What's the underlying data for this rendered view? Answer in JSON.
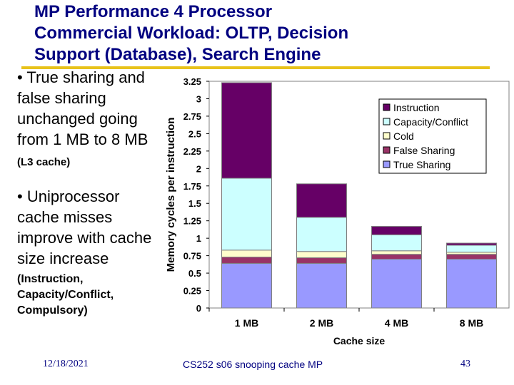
{
  "slide": {
    "title_lines": [
      "MP Performance 4 Processor",
      "Commercial Workload: OLTP, Decision",
      "Support (Database), Search Engine"
    ],
    "bullet1_main": "• True sharing and false sharing unchanged going from 1 MB to 8 MB",
    "bullet1_small": "(L3 cache)",
    "bullet2_main": "• Uniprocessor cache misses improve with cache size increase",
    "bullet2_note": "(Instruction, Capacity/Conflict, Compulsory)",
    "footer_date": "12/18/2021",
    "footer_center": "CS252 s06 snooping cache MP",
    "footer_page": "43"
  },
  "chart_data": {
    "type": "bar",
    "stacked": true,
    "categories": [
      "1 MB",
      "2 MB",
      "4 MB",
      "8 MB"
    ],
    "series": [
      {
        "name": "True Sharing",
        "color": "#9999ff",
        "values": [
          0.64,
          0.64,
          0.7,
          0.7
        ]
      },
      {
        "name": "False Sharing",
        "color": "#993366",
        "values": [
          0.09,
          0.08,
          0.07,
          0.07
        ]
      },
      {
        "name": "Cold",
        "color": "#ffffcc",
        "values": [
          0.1,
          0.09,
          0.05,
          0.03
        ]
      },
      {
        "name": "Capacity/Conflict",
        "color": "#ccffff",
        "values": [
          1.03,
          0.49,
          0.23,
          0.1
        ]
      },
      {
        "name": "Instruction",
        "color": "#660066",
        "values": [
          1.37,
          0.48,
          0.12,
          0.03
        ]
      }
    ],
    "legend_order": [
      "Instruction",
      "Capacity/Conflict",
      "Cold",
      "False Sharing",
      "True Sharing"
    ],
    "ylabel": "Memory cycles per instruction",
    "xlabel": "Cache size",
    "ylim": [
      0,
      3.25
    ],
    "yticks": [
      "0",
      "0.25",
      "0.5",
      "0.75",
      "1",
      "1.25",
      "1.5",
      "1.75",
      "2",
      "2.25",
      "2.5",
      "2.75",
      "3",
      "3.25"
    ],
    "legend_position": "top-right"
  }
}
